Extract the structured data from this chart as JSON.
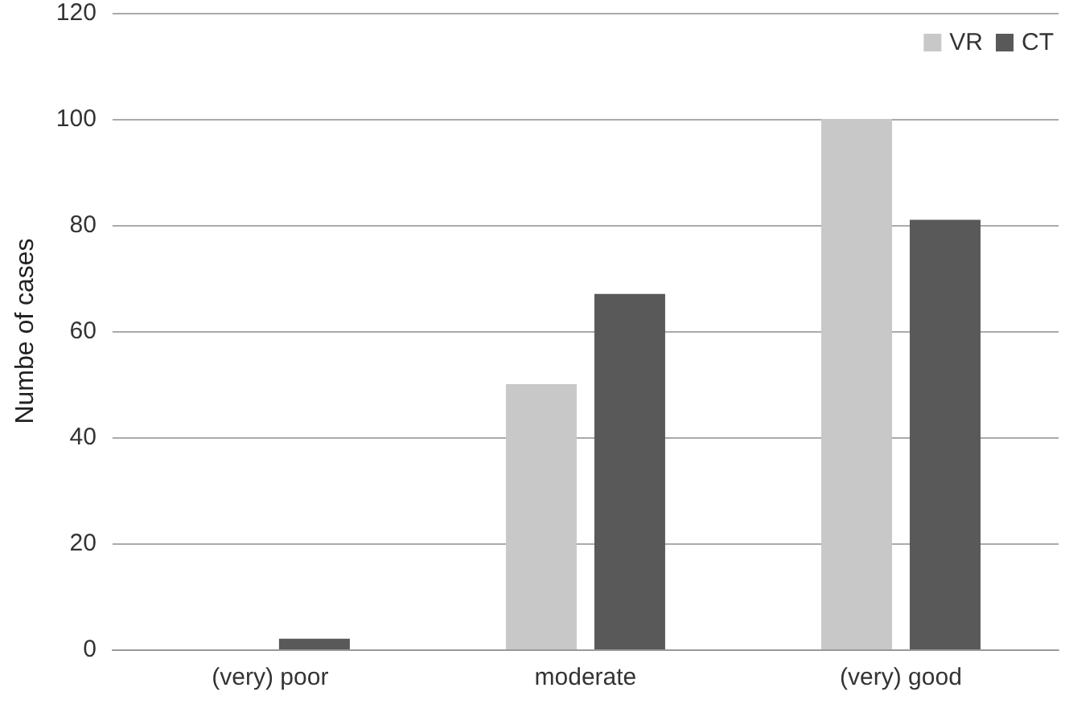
{
  "chart_data": {
    "type": "bar",
    "ylabel": "Numbe of cases",
    "categories": [
      "(very) poor",
      "moderate",
      "(very) good"
    ],
    "series": [
      {
        "name": "VR",
        "color": "#c8c8c8",
        "values": [
          0,
          50,
          100
        ]
      },
      {
        "name": "CT",
        "color": "#595959",
        "values": [
          2,
          67,
          81
        ]
      }
    ],
    "ylim": [
      0,
      120
    ],
    "yticks": [
      0,
      20,
      40,
      60,
      80,
      100,
      120
    ],
    "grid": "y",
    "legend": "top right"
  }
}
